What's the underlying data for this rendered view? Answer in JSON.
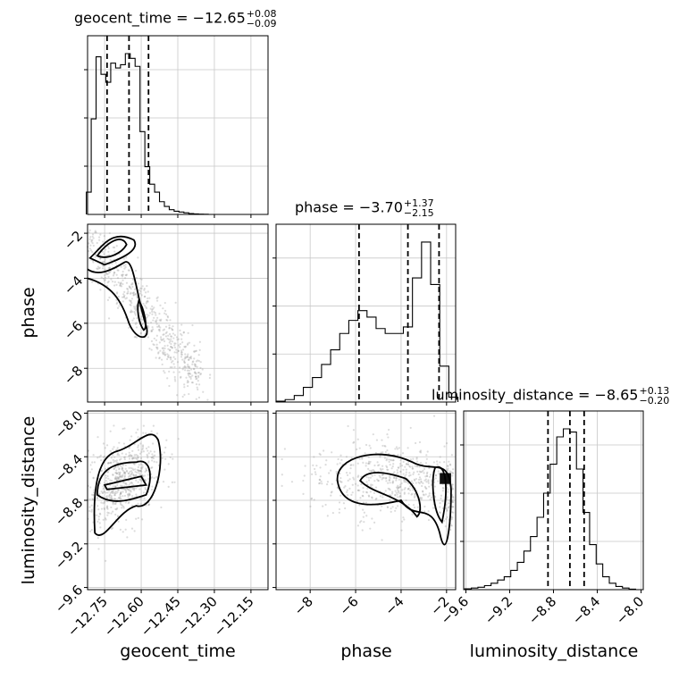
{
  "chart_data": {
    "type": "corner",
    "parameters": [
      "geocent_time",
      "phase",
      "luminosity_distance"
    ],
    "titles": [
      {
        "param": "geocent_time",
        "label": "geocent_time = −12.65",
        "upper": "+0.08",
        "lower": "−0.09"
      },
      {
        "param": "phase",
        "label": "phase = −3.70",
        "upper": "+1.37",
        "lower": "−2.15"
      },
      {
        "param": "luminosity_distance",
        "label": "luminosity_distance = −8.65",
        "upper": "+0.13",
        "lower": "−0.20"
      }
    ],
    "axis_labels": {
      "x": [
        "geocent_time",
        "phase",
        "luminosity_distance"
      ],
      "y": [
        "phase",
        "luminosity_distance"
      ]
    },
    "ranges": {
      "geocent_time": [
        -12.82,
        -12.08
      ],
      "phase": [
        -9.5,
        -1.6
      ],
      "luminosity_distance": [
        -9.62,
        -7.98
      ]
    },
    "ticks": {
      "geocent_time": {
        "values": [
          -12.75,
          -12.6,
          -12.45,
          -12.3,
          -12.15
        ],
        "labels": [
          "−12.75",
          "−12.60",
          "−12.45",
          "−12.30",
          "−12.15"
        ]
      },
      "phase_x": {
        "values": [
          -8,
          -6,
          -4,
          -2
        ],
        "labels": [
          "−8",
          "−6",
          "−4",
          "−2"
        ]
      },
      "phase_y": {
        "values": [
          -8,
          -6,
          -4,
          -2
        ],
        "labels": [
          "−8",
          "−6",
          "−4",
          "−2"
        ]
      },
      "luminosity_distance_x": {
        "values": [
          -9.6,
          -9.2,
          -8.8,
          -8.4,
          -8.0
        ],
        "labels": [
          "−9.6",
          "−9.2",
          "−8.8",
          "−8.4",
          "−8.0"
        ]
      },
      "luminosity_distance_y": {
        "values": [
          -9.6,
          -9.2,
          -8.8,
          -8.4,
          -8.0
        ],
        "labels": [
          "−9.6",
          "−9.2",
          "−8.8",
          "−8.4",
          "−8.0"
        ]
      }
    },
    "quantiles": {
      "geocent_time": [
        -12.74,
        -12.65,
        -12.57
      ],
      "phase": [
        -5.85,
        -3.7,
        -2.33
      ],
      "luminosity_distance": [
        -8.85,
        -8.65,
        -8.52
      ]
    },
    "histograms": {
      "geocent_time": {
        "x": [
          -12.815,
          -12.795,
          -12.775,
          -12.755,
          -12.735,
          -12.715,
          -12.695,
          -12.675,
          -12.655,
          -12.635,
          -12.615,
          -12.595,
          -12.575,
          -12.555,
          -12.535,
          -12.515,
          -12.495,
          -12.475,
          -12.455,
          -12.435,
          -12.415,
          -12.395,
          -12.375,
          -12.355,
          -12.335,
          -12.315,
          -12.295,
          -12.275,
          -12.255,
          -12.235,
          -12.215,
          -12.195,
          -12.175,
          -12.155,
          -12.135,
          -12.115,
          -12.095
        ],
        "values": [
          0.14,
          0.6,
          0.99,
          0.88,
          0.83,
          0.95,
          0.92,
          0.94,
          1.01,
          0.98,
          0.93,
          0.52,
          0.3,
          0.19,
          0.14,
          0.08,
          0.05,
          0.03,
          0.02,
          0.015,
          0.01,
          0.005,
          0.003,
          0.002,
          0.001,
          0,
          0,
          0,
          0,
          0,
          0,
          0,
          0,
          0,
          0,
          0,
          0
        ]
      },
      "phase": {
        "x": [
          -9.3,
          -8.9,
          -8.5,
          -8.1,
          -7.7,
          -7.3,
          -6.9,
          -6.5,
          -6.1,
          -5.7,
          -5.3,
          -4.9,
          -4.5,
          -4.1,
          -3.7,
          -3.3,
          -2.9,
          -2.5,
          -2.1,
          -1.7
        ],
        "values": [
          0.005,
          0.015,
          0.04,
          0.09,
          0.15,
          0.23,
          0.32,
          0.42,
          0.5,
          0.56,
          0.52,
          0.45,
          0.42,
          0.42,
          0.46,
          0.76,
          0.98,
          0.72,
          0.22,
          0.03
        ]
      },
      "luminosity_distance": {
        "x": [
          -9.58,
          -9.52,
          -9.46,
          -9.4,
          -9.34,
          -9.28,
          -9.22,
          -9.16,
          -9.1,
          -9.04,
          -8.98,
          -8.92,
          -8.86,
          -8.8,
          -8.74,
          -8.68,
          -8.62,
          -8.56,
          -8.5,
          -8.44,
          -8.38,
          -8.32,
          -8.26,
          -8.2,
          -8.14,
          -8.08,
          -8.02
        ],
        "values": [
          0.005,
          0.01,
          0.015,
          0.025,
          0.04,
          0.06,
          0.08,
          0.12,
          0.17,
          0.24,
          0.33,
          0.45,
          0.6,
          0.78,
          0.95,
          1.0,
          0.98,
          0.75,
          0.48,
          0.28,
          0.16,
          0.08,
          0.04,
          0.02,
          0.01,
          0.003,
          0.0
        ]
      }
    },
    "pair_structure": {
      "phase_vs_geocent_time": {
        "mode_points": [
          [
            -12.8,
            -3.3
          ],
          [
            -12.73,
            -2.5
          ],
          [
            -12.6,
            -5.8
          ]
        ],
        "trend": "negative correlation"
      },
      "luminosity_distance_vs_geocent_time": {
        "mode_points": [
          [
            -12.72,
            -8.62
          ],
          [
            -12.6,
            -8.6
          ]
        ],
        "trend": "positive correlation"
      },
      "luminosity_distance_vs_phase": {
        "mode_points": [
          [
            -2.2,
            -8.6
          ],
          [
            -3.5,
            -8.7
          ],
          [
            -5.0,
            -8.55
          ]
        ],
        "trend": "band near -8.6"
      }
    },
    "grid": true
  }
}
